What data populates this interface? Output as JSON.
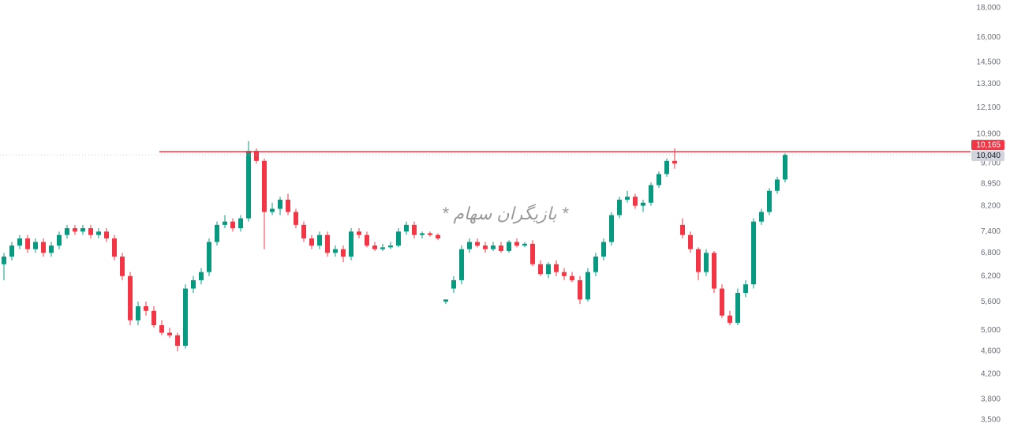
{
  "chart_data": {
    "type": "candlestick",
    "log_scale": true,
    "grid": false,
    "up_color": "#089981",
    "down_color": "#f23645",
    "ylim": [
      3500,
      18000
    ],
    "yticks": [
      {
        "value": 3500,
        "label": "3,500"
      },
      {
        "value": 3800,
        "label": "3,800"
      },
      {
        "value": 4200,
        "label": "4,200"
      },
      {
        "value": 4600,
        "label": "4,600"
      },
      {
        "value": 5000,
        "label": "5,000"
      },
      {
        "value": 5600,
        "label": "5,600"
      },
      {
        "value": 6200,
        "label": "6,200"
      },
      {
        "value": 6800,
        "label": "6,800"
      },
      {
        "value": 7400,
        "label": "7,400"
      },
      {
        "value": 8200,
        "label": "8,200"
      },
      {
        "value": 8950,
        "label": "8,950"
      },
      {
        "value": 9700,
        "label": "9,700"
      },
      {
        "value": 10900,
        "label": "10,900"
      },
      {
        "value": 12100,
        "label": "12,100"
      },
      {
        "value": 13300,
        "label": "13,300"
      },
      {
        "value": 14500,
        "label": "14,500"
      },
      {
        "value": 16000,
        "label": "16,000"
      },
      {
        "value": 18000,
        "label": "18,000"
      }
    ],
    "watermark": "* بازیگران سهام *",
    "hline": {
      "value": 10165,
      "label": "10,165",
      "color": "#f23645"
    },
    "last_price": {
      "value": 10040,
      "label": "10,040"
    },
    "open": [
      6500,
      6700,
      7000,
      7200,
      6900,
      7100,
      6800,
      7000,
      7300,
      7500,
      7400,
      7500,
      7300,
      7400,
      7200,
      6700,
      6200,
      5200,
      5500,
      5400,
      5100,
      4950,
      4900,
      4700,
      5900,
      6100,
      6300,
      7100,
      7600,
      7700,
      7500,
      7800,
      10200,
      9800,
      8000,
      8100,
      8400,
      8000,
      7600,
      7200,
      7000,
      7300,
      6800,
      6900,
      6700,
      7400,
      7300,
      7000,
      6900,
      6950,
      7000,
      7400,
      7600,
      7300,
      7350,
      7300,
      5600,
      5900,
      6100,
      6900,
      7100,
      7000,
      6900,
      7000,
      6850,
      7100,
      7000,
      7050,
      6500,
      6250,
      6500,
      6300,
      6200,
      6100,
      5650,
      6300,
      6700,
      7100,
      7900,
      8400,
      8500,
      8200,
      8300,
      8900,
      9300,
      9800,
      7600,
      7300,
      6900,
      6300,
      6800,
      5900,
      5300,
      5150,
      5800,
      6000,
      7700,
      8000,
      8700,
      9100
    ],
    "high": [
      6800,
      7100,
      7300,
      7300,
      7200,
      7200,
      7100,
      7400,
      7600,
      7600,
      7600,
      7600,
      7500,
      7500,
      7300,
      6800,
      6300,
      5600,
      5600,
      5500,
      5200,
      5050,
      4950,
      6000,
      6200,
      6400,
      7200,
      7700,
      7900,
      7800,
      7900,
      10600,
      10300,
      9900,
      8300,
      8500,
      8600,
      8100,
      7700,
      7300,
      7400,
      7400,
      7000,
      7000,
      7500,
      7500,
      7400,
      7100,
      7050,
      7100,
      7500,
      7700,
      7700,
      7400,
      7400,
      7350,
      5650,
      6200,
      7000,
      7200,
      7200,
      7100,
      7100,
      7100,
      7150,
      7200,
      7100,
      7150,
      6600,
      6550,
      6600,
      6400,
      6300,
      6200,
      6400,
      6800,
      7200,
      8000,
      8500,
      8700,
      8600,
      8400,
      9000,
      9400,
      9900,
      10300,
      7800,
      7400,
      6950,
      6900,
      6850,
      6000,
      5400,
      5900,
      6100,
      7800,
      8100,
      8800,
      9200,
      10100
    ],
    "low": [
      6100,
      6600,
      6900,
      6800,
      6800,
      6700,
      6700,
      6900,
      7200,
      7300,
      7300,
      7200,
      7200,
      7100,
      6600,
      6100,
      5100,
      5100,
      5300,
      5050,
      4900,
      4850,
      4600,
      4650,
      5800,
      6000,
      6200,
      7000,
      7500,
      7400,
      7400,
      7700,
      9700,
      6900,
      7900,
      7900,
      7900,
      7500,
      7100,
      6900,
      6900,
      6700,
      6700,
      6550,
      6600,
      7200,
      6950,
      6850,
      6850,
      6900,
      6950,
      7300,
      7200,
      7200,
      7250,
      7150,
      5550,
      5800,
      6000,
      6800,
      6950,
      6800,
      6850,
      6800,
      6800,
      6950,
      6950,
      6450,
      6200,
      6150,
      6200,
      6100,
      6050,
      5550,
      5600,
      6200,
      6600,
      7000,
      7800,
      8300,
      8100,
      8000,
      8200,
      8800,
      9200,
      9500,
      7200,
      6800,
      6100,
      6200,
      5800,
      5250,
      5100,
      5100,
      5700,
      5900,
      7600,
      7900,
      8600,
      9000
    ],
    "close": [
      6700,
      7000,
      7200,
      6900,
      7100,
      6800,
      7000,
      7300,
      7500,
      7400,
      7500,
      7300,
      7400,
      7200,
      6700,
      6200,
      5200,
      5500,
      5400,
      5100,
      4950,
      4900,
      4700,
      5900,
      6100,
      6300,
      7100,
      7600,
      7700,
      7500,
      7800,
      10200,
      9800,
      8000,
      8100,
      8400,
      8000,
      7600,
      7200,
      7000,
      7300,
      6800,
      6900,
      6700,
      7400,
      7300,
      7000,
      6900,
      6950,
      7000,
      7400,
      7600,
      7300,
      7350,
      7300,
      7200,
      5650,
      6100,
      6900,
      7100,
      7000,
      6900,
      7000,
      6850,
      7100,
      7000,
      7050,
      6500,
      6250,
      6500,
      6300,
      6200,
      6100,
      5650,
      6300,
      6700,
      7100,
      7900,
      8400,
      8500,
      8200,
      8300,
      8900,
      9300,
      9800,
      9700,
      7300,
      6900,
      6300,
      6800,
      5900,
      5300,
      5150,
      5800,
      6000,
      7700,
      8000,
      8700,
      9100,
      10040
    ]
  }
}
